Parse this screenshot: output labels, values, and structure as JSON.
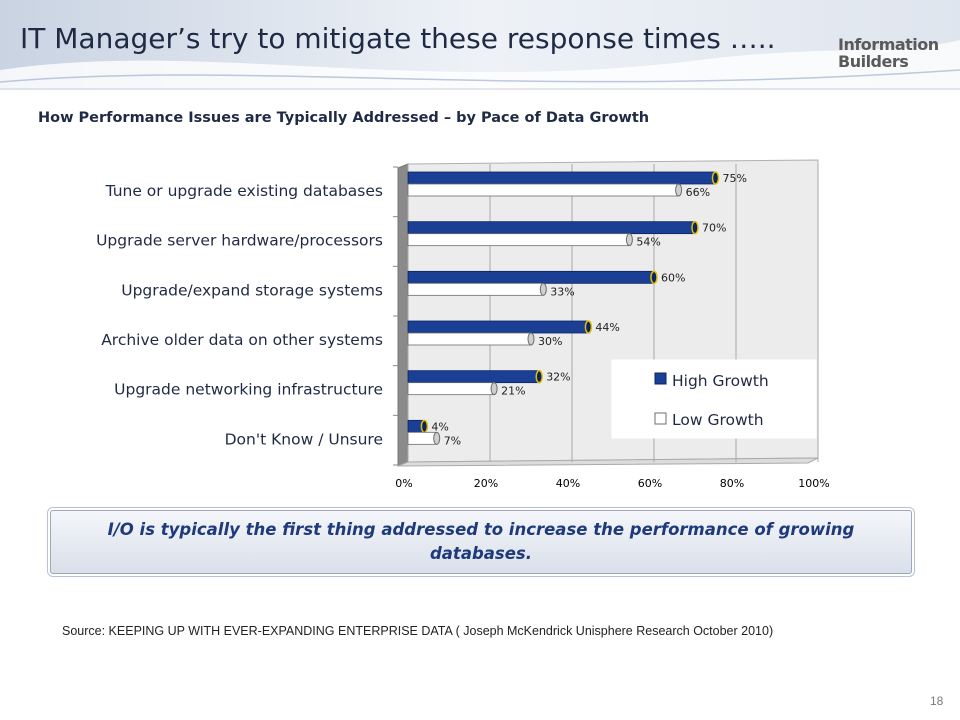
{
  "slide": {
    "title": "IT Manager’s try to mitigate these response times …..",
    "logo": {
      "line1": "Information",
      "line2": "Builders"
    },
    "callout": "I/O is typically the first thing addressed to increase the performance of growing databases.",
    "source": "Source: KEEPING UP WITH EVER-EXPANDING ENTERPRISE DATA ( Joseph McKendrick Unisphere Research October 2010)",
    "page_number": "18"
  },
  "colors": {
    "high_growth": "#1a3f95",
    "high_growth_edge": "#e0c000",
    "low_growth": "#ffffff",
    "text": "#1f2a44"
  },
  "chart_data": {
    "type": "bar",
    "orientation": "horizontal",
    "title": "How Performance Issues are Typically Addressed – by Pace of Data Growth",
    "categories": [
      "Tune or upgrade existing databases",
      "Upgrade server hardware/processors",
      "Upgrade/expand storage systems",
      "Archive older data on other systems",
      "Upgrade networking infrastructure",
      "Don't Know / Unsure"
    ],
    "series": [
      {
        "name": "High Growth",
        "values": [
          75,
          70,
          60,
          44,
          32,
          4
        ]
      },
      {
        "name": "Low Growth",
        "values": [
          66,
          54,
          33,
          30,
          21,
          7
        ]
      }
    ],
    "value_suffix": "%",
    "xlim": [
      0,
      100
    ],
    "xticks": [
      "0%",
      "20%",
      "40%",
      "60%",
      "80%",
      "100%"
    ],
    "xtick_values": [
      0,
      20,
      40,
      60,
      80,
      100
    ],
    "grid": true,
    "legend_position": "lower-right"
  }
}
